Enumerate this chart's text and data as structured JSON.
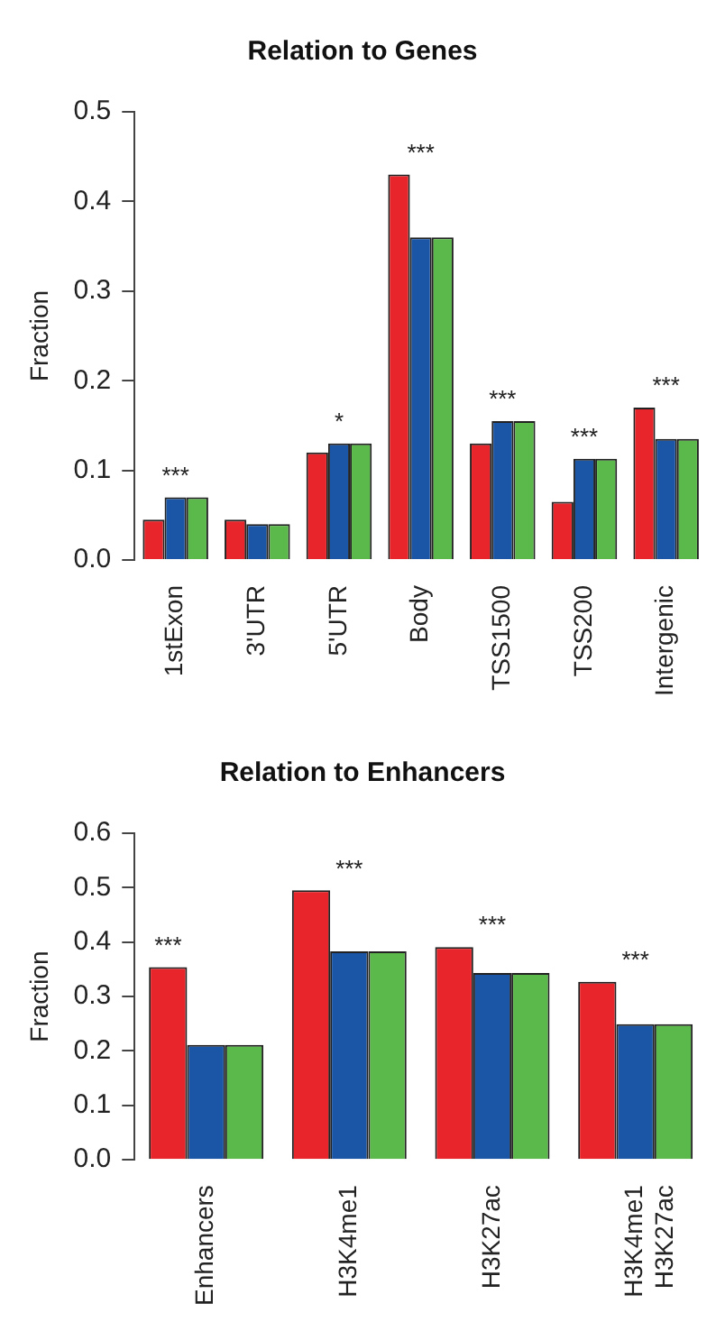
{
  "chart_data": [
    {
      "type": "bar",
      "title": "Relation to Genes",
      "ylabel": "Fraction",
      "categories": [
        "1stExon",
        "3'UTR",
        "5'UTR",
        "Body",
        "TSS1500",
        "TSS200",
        "Intergenic"
      ],
      "series": [
        {
          "color": "#e8252a",
          "values": [
            0.045,
            0.045,
            0.12,
            0.43,
            0.13,
            0.065,
            0.17
          ]
        },
        {
          "color": "#1a55a6",
          "values": [
            0.07,
            0.04,
            0.13,
            0.36,
            0.155,
            0.113,
            0.135
          ],
          "value_labels": [
            "***",
            null,
            "*",
            "***",
            "***",
            "***",
            "***"
          ]
        },
        {
          "color": "#5bb84a",
          "values": [
            0.07,
            0.04,
            0.13,
            0.36,
            0.155,
            0.113,
            0.135
          ]
        }
      ],
      "ylim": [
        0,
        0.5
      ],
      "yticks": [
        {
          "value": 0,
          "label": "0.0"
        },
        0.1,
        0.2,
        0.3,
        0.4,
        0.5
      ],
      "grid": false,
      "legend": false
    },
    {
      "type": "bar",
      "title": "Relation to Enhancers",
      "ylabel": "Fraction",
      "categories": [
        "Enhancers",
        "H3K4me1",
        "H3K27ac",
        "H3K4me1\nH3K27ac"
      ],
      "series": [
        {
          "color": "#e8252a",
          "values": [
            0.354,
            0.495,
            0.391,
            0.327
          ],
          "value_labels": [
            "***",
            null,
            null,
            null
          ]
        },
        {
          "color": "#1a55a6",
          "values": [
            0.211,
            0.383,
            0.343,
            0.249
          ],
          "value_labels": [
            null,
            "***",
            "***",
            "***"
          ]
        },
        {
          "color": "#5bb84a",
          "values": [
            0.211,
            0.383,
            0.343,
            0.249
          ]
        }
      ],
      "ylim": [
        0,
        0.6
      ],
      "yticks": [
        {
          "value": 0,
          "label": "0.0"
        },
        0.1,
        0.2,
        0.3,
        0.4,
        0.5,
        0.6
      ],
      "grid": false,
      "legend": false
    }
  ]
}
